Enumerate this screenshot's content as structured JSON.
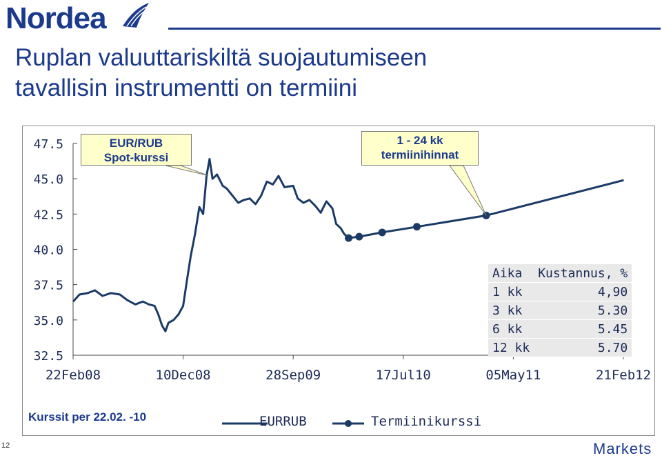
{
  "brand": {
    "logo_text": "Nordea",
    "footer_text": "Markets",
    "page_number": "12",
    "color": "#1b3a8c"
  },
  "title": {
    "line1": "Ruplan valuuttariskiltä suojautumiseen",
    "line2": "tavallisin instrumentti on termiini"
  },
  "callouts": {
    "spot": {
      "line1": "EUR/RUB",
      "line2": "Spot-kurssi"
    },
    "forward": {
      "line1": "1 - 24 kk",
      "line2": "termiinihinnat"
    }
  },
  "cost_table": {
    "headers": [
      "Aika",
      "Kustannus, %"
    ],
    "rows": [
      [
        "1 kk",
        "4,90"
      ],
      [
        "3 kk",
        "5.30"
      ],
      [
        "6 kk",
        "5.45"
      ],
      [
        "12 kk",
        "5.70"
      ]
    ]
  },
  "note": "Kurssit per 22.02. -10",
  "legend": {
    "spot": "EURRUB",
    "forward": "Termiinikurssi"
  },
  "chart_data": {
    "type": "line",
    "x_tick_labels": [
      "22Feb08",
      "10Dec08",
      "28Sep09",
      "17Jul10",
      "05May11",
      "21Feb12"
    ],
    "x_ticks": [
      "2008-02-22",
      "2008-12-10",
      "2009-09-28",
      "2010-07-17",
      "2011-05-05",
      "2012-02-21"
    ],
    "y_tick_labels": [
      "47.5",
      "45.0",
      "42.5",
      "40.0",
      "37.5",
      "35.0",
      "32.5"
    ],
    "ylim": [
      32.5,
      47.5
    ],
    "grid": false,
    "legend_position": "bottom",
    "series": [
      {
        "name": "EURRUB",
        "color": "#1b3a66",
        "points": [
          [
            "2008-02-22",
            36.3
          ],
          [
            "2008-03-10",
            36.8
          ],
          [
            "2008-04-01",
            36.9
          ],
          [
            "2008-04-20",
            37.1
          ],
          [
            "2008-05-10",
            36.7
          ],
          [
            "2008-06-01",
            36.9
          ],
          [
            "2008-06-25",
            36.8
          ],
          [
            "2008-07-15",
            36.4
          ],
          [
            "2008-08-05",
            36.1
          ],
          [
            "2008-08-25",
            36.3
          ],
          [
            "2008-09-10",
            36.1
          ],
          [
            "2008-09-25",
            36.0
          ],
          [
            "2008-10-05",
            35.4
          ],
          [
            "2008-10-15",
            34.6
          ],
          [
            "2008-10-24",
            34.2
          ],
          [
            "2008-11-01",
            34.8
          ],
          [
            "2008-11-15",
            35.0
          ],
          [
            "2008-11-28",
            35.4
          ],
          [
            "2008-12-10",
            36.0
          ],
          [
            "2008-12-20",
            37.8
          ],
          [
            "2008-12-30",
            39.5
          ],
          [
            "2009-01-10",
            41.0
          ],
          [
            "2009-01-22",
            43.0
          ],
          [
            "2009-02-01",
            42.5
          ],
          [
            "2009-02-10",
            45.2
          ],
          [
            "2009-02-18",
            46.4
          ],
          [
            "2009-02-26",
            45.0
          ],
          [
            "2009-03-10",
            45.3
          ],
          [
            "2009-03-25",
            44.5
          ],
          [
            "2009-04-05",
            44.3
          ],
          [
            "2009-04-20",
            43.8
          ],
          [
            "2009-05-05",
            43.3
          ],
          [
            "2009-05-20",
            43.5
          ],
          [
            "2009-06-05",
            43.6
          ],
          [
            "2009-06-20",
            43.2
          ],
          [
            "2009-07-05",
            43.8
          ],
          [
            "2009-07-20",
            44.8
          ],
          [
            "2009-08-05",
            44.6
          ],
          [
            "2009-08-20",
            45.2
          ],
          [
            "2009-09-05",
            44.4
          ],
          [
            "2009-09-28",
            44.5
          ],
          [
            "2009-10-10",
            43.6
          ],
          [
            "2009-10-25",
            43.3
          ],
          [
            "2009-11-10",
            43.5
          ],
          [
            "2009-11-25",
            43.1
          ],
          [
            "2009-12-10",
            42.6
          ],
          [
            "2009-12-25",
            43.4
          ],
          [
            "2010-01-10",
            42.9
          ],
          [
            "2010-01-20",
            41.8
          ],
          [
            "2010-02-01",
            41.5
          ],
          [
            "2010-02-10",
            41.1
          ],
          [
            "2010-02-22",
            40.8
          ]
        ]
      },
      {
        "name": "Termiinikurssi",
        "color": "#1b3a66",
        "points": [
          [
            "2010-02-22",
            40.8
          ],
          [
            "2010-03-22",
            40.9
          ],
          [
            "2010-05-22",
            41.2
          ],
          [
            "2010-08-22",
            41.6
          ],
          [
            "2011-02-22",
            42.4
          ],
          [
            "2012-02-22",
            44.9
          ]
        ]
      }
    ]
  }
}
